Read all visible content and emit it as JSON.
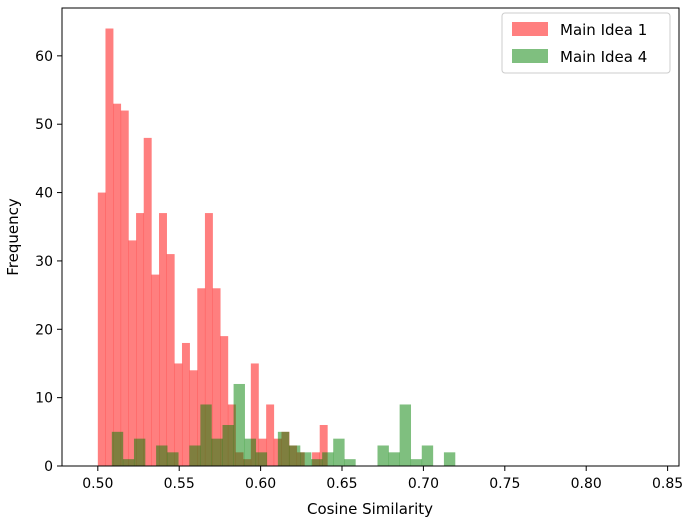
{
  "chart_data": {
    "type": "histogram",
    "title": "",
    "xlabel": "Cosine Similarity",
    "ylabel": "Frequency",
    "xlim": [
      0.478,
      0.857
    ],
    "ylim": [
      0,
      67
    ],
    "xticks": [
      0.5,
      0.55,
      0.6,
      0.65,
      0.7,
      0.75,
      0.8,
      0.85
    ],
    "xtick_labels": [
      "0.50",
      "0.55",
      "0.60",
      "0.65",
      "0.70",
      "0.75",
      "0.80",
      "0.85"
    ],
    "yticks": [
      0,
      10,
      20,
      30,
      40,
      50,
      60
    ],
    "ytick_labels": [
      "0",
      "10",
      "20",
      "30",
      "40",
      "50",
      "60"
    ],
    "legend_position": "top-right",
    "grid": false,
    "series": [
      {
        "name": "Main Idea 1",
        "color": "#ff0000",
        "alpha": 0.5,
        "bins": [
          [
            0.5,
            0.5047,
            40
          ],
          [
            0.5047,
            0.5094,
            64
          ],
          [
            0.5094,
            0.5141,
            53
          ],
          [
            0.5141,
            0.5188,
            52
          ],
          [
            0.5188,
            0.5235,
            33
          ],
          [
            0.5235,
            0.5282,
            37
          ],
          [
            0.5282,
            0.5329,
            48
          ],
          [
            0.5329,
            0.5376,
            28
          ],
          [
            0.5376,
            0.5423,
            37
          ],
          [
            0.5423,
            0.547,
            31
          ],
          [
            0.547,
            0.5517,
            15
          ],
          [
            0.5517,
            0.5564,
            18
          ],
          [
            0.5564,
            0.5611,
            14
          ],
          [
            0.5611,
            0.5658,
            26
          ],
          [
            0.5658,
            0.5705,
            37
          ],
          [
            0.5705,
            0.5752,
            26
          ],
          [
            0.5752,
            0.5799,
            19
          ],
          [
            0.5799,
            0.5846,
            9
          ],
          [
            0.5846,
            0.5893,
            2
          ],
          [
            0.5893,
            0.594,
            1
          ],
          [
            0.594,
            0.5987,
            15
          ],
          [
            0.5987,
            0.6034,
            4
          ],
          [
            0.6034,
            0.6081,
            9
          ],
          [
            0.6081,
            0.6128,
            4
          ],
          [
            0.6128,
            0.6175,
            5
          ],
          [
            0.6175,
            0.6222,
            3
          ],
          [
            0.6222,
            0.6269,
            2
          ],
          [
            0.6269,
            0.6316,
            0
          ],
          [
            0.6316,
            0.6363,
            2
          ],
          [
            0.6363,
            0.641,
            6
          ]
        ]
      },
      {
        "name": "Main Idea 4",
        "color": "#008000",
        "alpha": 0.5,
        "bins": [
          [
            0.5086,
            0.5154,
            5
          ],
          [
            0.5154,
            0.5222,
            1
          ],
          [
            0.5222,
            0.529,
            4
          ],
          [
            0.529,
            0.5358,
            0
          ],
          [
            0.5358,
            0.5426,
            3
          ],
          [
            0.5426,
            0.5494,
            2
          ],
          [
            0.5494,
            0.5562,
            0
          ],
          [
            0.5562,
            0.563,
            3
          ],
          [
            0.563,
            0.5698,
            9
          ],
          [
            0.5698,
            0.5766,
            4
          ],
          [
            0.5766,
            0.5834,
            6
          ],
          [
            0.5834,
            0.5902,
            12
          ],
          [
            0.5902,
            0.597,
            4
          ],
          [
            0.597,
            0.6038,
            2
          ],
          [
            0.6038,
            0.6106,
            0
          ],
          [
            0.6106,
            0.6174,
            5
          ],
          [
            0.6174,
            0.6242,
            3
          ],
          [
            0.6242,
            0.631,
            2
          ],
          [
            0.631,
            0.6378,
            1
          ],
          [
            0.6378,
            0.6446,
            2
          ],
          [
            0.6446,
            0.6514,
            4
          ],
          [
            0.6514,
            0.6582,
            1
          ],
          [
            0.6582,
            0.665,
            0
          ],
          [
            0.665,
            0.6718,
            0
          ],
          [
            0.6718,
            0.6786,
            3
          ],
          [
            0.6786,
            0.6854,
            2
          ],
          [
            0.6854,
            0.6922,
            9
          ],
          [
            0.6922,
            0.699,
            1
          ],
          [
            0.699,
            0.7058,
            3
          ],
          [
            0.7058,
            0.7126,
            0
          ],
          [
            0.7126,
            0.7194,
            2
          ]
        ]
      }
    ]
  }
}
